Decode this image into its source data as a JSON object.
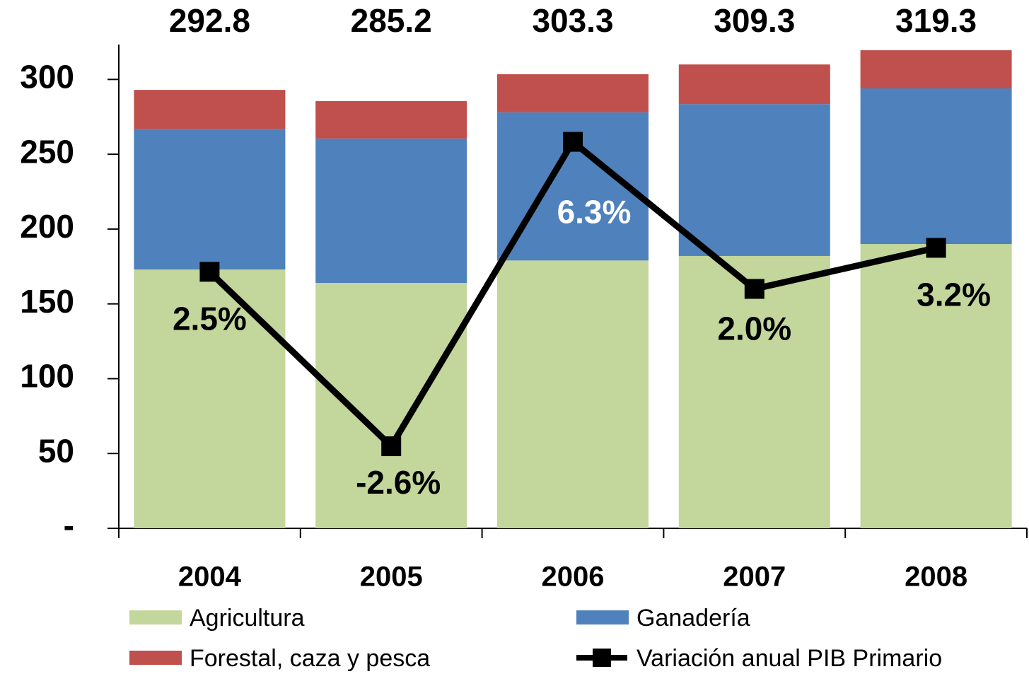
{
  "chart_data": {
    "type": "bar",
    "stacked": true,
    "categories": [
      "2004",
      "2005",
      "2006",
      "2007",
      "2008"
    ],
    "series": [
      {
        "name": "Agricultura",
        "color": "#c3d69b",
        "values": [
          173,
          164,
          179,
          182,
          190
        ]
      },
      {
        "name": "Ganadería",
        "color": "#4f81bd",
        "values": [
          94,
          96.5,
          99,
          101.5,
          104
        ]
      },
      {
        "name": "Forestal, caza y pesca",
        "color": "#c0504d",
        "values": [
          26,
          25,
          25.5,
          26.5,
          25.5
        ]
      },
      {
        "name": "Variación anual PIB Primario",
        "color": "#000000",
        "type": "line",
        "axis": "y2",
        "values": [
          2.5,
          -2.6,
          6.3,
          2.0,
          3.2
        ],
        "value_labels": [
          "2.5%",
          "-2.6%",
          "6.3%",
          "2.0%",
          "3.2%"
        ]
      }
    ],
    "totals": [
      292.8,
      285.2,
      303.3,
      309.3,
      319.3
    ],
    "ylim": [
      0,
      320
    ],
    "yticks": [
      {
        "value": 0,
        "label": "-"
      },
      50,
      100,
      150,
      200,
      250,
      300
    ],
    "y2lim": [
      -5,
      9
    ],
    "grid": false,
    "legend": "bottom"
  }
}
